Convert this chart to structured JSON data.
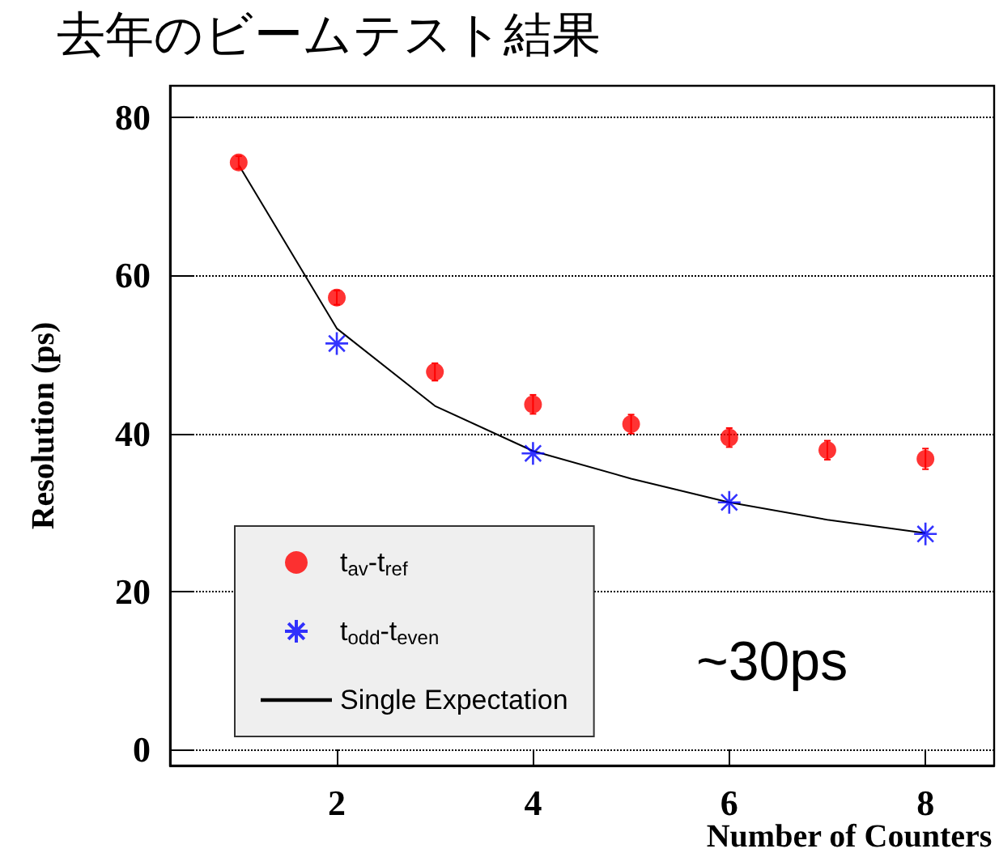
{
  "chart_data": {
    "type": "scatter",
    "title": "去年のビームテスト結果",
    "xlabel": "Number of Counters",
    "ylabel": "Resolution (ps)",
    "xlim": [
      0.3,
      8.7
    ],
    "ylim": [
      -2,
      84
    ],
    "xticks": [
      2,
      4,
      6,
      8
    ],
    "yticks": [
      0,
      20,
      40,
      60,
      80
    ],
    "grid": "y",
    "legend": "bottom left",
    "series": [
      {
        "name": "t$_{av}$-t$_{ref}$",
        "marker": "circle",
        "color": "#ff0000",
        "x": [
          1,
          2,
          3,
          4,
          5,
          6,
          7,
          8
        ],
        "values": [
          74.3,
          57.2,
          47.8,
          43.7,
          41.2,
          39.5,
          37.9,
          36.8
        ],
        "errors": [
          0.8,
          0.9,
          1.1,
          1.2,
          1.2,
          1.2,
          1.2,
          1.3
        ]
      },
      {
        "name": "t$_{odd}$-t$_{even}$",
        "marker": "cross",
        "color": "#0000ff",
        "x": [
          2,
          4,
          6,
          8
        ],
        "values": [
          51.4,
          37.5,
          31.3,
          27.3
        ]
      },
      {
        "name": "Single Expectation",
        "type": "line",
        "marker": "none",
        "color": "#000000",
        "x": [
          1,
          2,
          3,
          4,
          5,
          6,
          7,
          8
        ],
        "values": [
          74,
          53.3,
          43.5,
          37.8,
          34.3,
          31.3,
          29.1,
          27.4
        ]
      }
    ],
    "annotations": [
      "~30ps"
    ]
  }
}
